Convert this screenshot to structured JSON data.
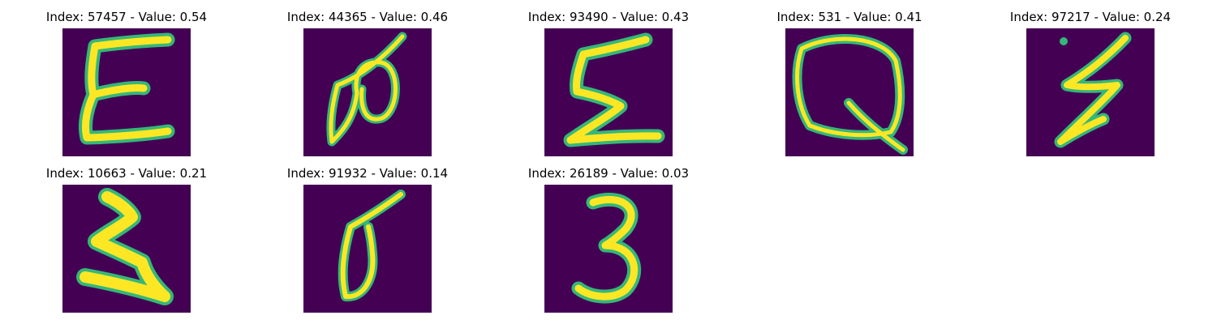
{
  "figure": {
    "background_color": "#440154",
    "stroke_outer_color": "#35b779",
    "stroke_inner_color": "#fde725"
  },
  "panels": [
    {
      "title": "Index: 57457 - Value: 0.54",
      "index": 57457,
      "value": 0.54,
      "glyph": "E-like stroke"
    },
    {
      "title": "Index: 44365 - Value: 0.46",
      "index": 44365,
      "value": 0.46,
      "glyph": "loop-and-slash stroke"
    },
    {
      "title": "Index: 93490 - Value: 0.43",
      "index": 93490,
      "value": 0.43,
      "glyph": "sigma-like stroke"
    },
    {
      "title": "Index: 531 - Value: 0.41",
      "index": 531,
      "value": 0.41,
      "glyph": "Q-like stroke"
    },
    {
      "title": "Index: 97217 - Value: 0.24",
      "index": 97217,
      "value": 0.24,
      "glyph": "z-like stroke"
    },
    {
      "title": "Index: 10663 - Value: 0.21",
      "index": 10663,
      "value": 0.21,
      "glyph": "3-like bold stroke"
    },
    {
      "title": "Index: 91932 - Value: 0.14",
      "index": 91932,
      "value": 0.14,
      "glyph": "slashed-zero stroke"
    },
    {
      "title": "Index: 26189 - Value: 0.03",
      "index": 26189,
      "value": 0.03,
      "glyph": "3-like stroke"
    }
  ],
  "chart_data": {
    "type": "image-grid",
    "grid": {
      "rows": 2,
      "cols": 5,
      "filled": 8
    },
    "items": [
      {
        "index": 57457,
        "value": 0.54
      },
      {
        "index": 44365,
        "value": 0.46
      },
      {
        "index": 93490,
        "value": 0.43
      },
      {
        "index": 531,
        "value": 0.41
      },
      {
        "index": 97217,
        "value": 0.24
      },
      {
        "index": 10663,
        "value": 0.21
      },
      {
        "index": 91932,
        "value": 0.14
      },
      {
        "index": 26189,
        "value": 0.03
      }
    ],
    "axes": "off"
  }
}
